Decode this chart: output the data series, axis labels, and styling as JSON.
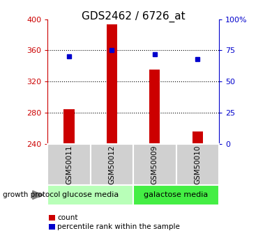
{
  "title": "GDS2462 / 6726_at",
  "samples": [
    "GSM50011",
    "GSM50012",
    "GSM50009",
    "GSM50010"
  ],
  "counts": [
    285,
    393,
    335,
    256
  ],
  "percentiles": [
    70,
    75,
    72,
    68
  ],
  "baseline": 240,
  "ylim_left": [
    240,
    400
  ],
  "ylim_right": [
    0,
    100
  ],
  "yticks_left": [
    240,
    280,
    320,
    360,
    400
  ],
  "yticks_right": [
    0,
    25,
    50,
    75,
    100
  ],
  "bar_color": "#cc0000",
  "dot_color": "#0000cc",
  "groups": [
    {
      "label": "glucose media",
      "samples": [
        0,
        1
      ],
      "color": "#b8ffb8"
    },
    {
      "label": "galactose media",
      "samples": [
        2,
        3
      ],
      "color": "#44ee44"
    }
  ],
  "sample_box_color": "#d0d0d0",
  "title_fontsize": 11,
  "axis_label_color_left": "#cc0000",
  "axis_label_color_right": "#0000cc"
}
